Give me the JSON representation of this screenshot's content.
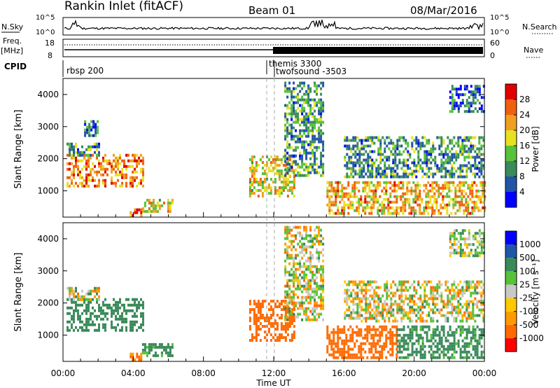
{
  "header": {
    "title": "Rankin Inlet (fitACF)",
    "beam": "Beam 01",
    "date": "08/Mar/2016"
  },
  "aux_panels": {
    "nsky_label": "N.Sky",
    "nsearch_label": "N.Search",
    "freq_label_line1": "Freq.",
    "freq_label_line2": "[MHz]",
    "nave_label": "Nave",
    "cpid_label": "CPID",
    "nsky_ticks": [
      "10^5",
      "10^0"
    ],
    "nsearch_ticks": [
      "10^5",
      "10^0"
    ],
    "freq_ticks": [
      "18",
      "8"
    ],
    "nave_ticks": [
      "60",
      "0"
    ]
  },
  "cpid_segments": [
    {
      "label": "rbsp 200",
      "start_hour": 0
    },
    {
      "label": "themis 3300",
      "start_hour": 11.6
    },
    {
      "label": "twofsound -3503",
      "start_hour": 12.0
    }
  ],
  "x_axis": {
    "label": "Time UT",
    "ticks": [
      "00:00",
      "04:00",
      "08:00",
      "12:00",
      "16:00",
      "20:00",
      "00:00"
    ]
  },
  "power_colorbar": {
    "label": "Power [dB]",
    "ticks": [
      "28",
      "24",
      "20",
      "16",
      "12",
      "8",
      "4"
    ]
  },
  "velocity_colorbar": {
    "label": "Velocity [m s⁻¹]",
    "ticks": [
      "1000",
      "500",
      "100",
      "25",
      "-25",
      "-100",
      "-500",
      "-1000"
    ]
  },
  "colors": {
    "power_scale": [
      "#0000ff",
      "#2255a8",
      "#3a8a5a",
      "#58c23a",
      "#e8e020",
      "#f0a020",
      "#f06010",
      "#e00000"
    ],
    "velocity_scale": [
      "#ff0000",
      "#ff6a00",
      "#ff9a00",
      "#ffc800",
      "#c8c8c8",
      "#58c23a",
      "#3a8a5a",
      "#2255a8",
      "#0000ff"
    ]
  },
  "chart_data": [
    {
      "type": "heatmap",
      "title": "Power",
      "ylabel": "Slant Range [km]",
      "xlabel": "Time UT",
      "xlim": [
        0,
        24
      ],
      "ylim": [
        180,
        4500
      ],
      "yticks": [
        1000,
        2000,
        3000,
        4000
      ],
      "colorbar_label": "Power [dB]",
      "colorbar_range": [
        0,
        30
      ],
      "regions": [
        {
          "t0": 0.2,
          "t1": 4.6,
          "r0": 1150,
          "r1": 2150,
          "value": 22
        },
        {
          "t0": 0.2,
          "t1": 2.0,
          "r0": 2100,
          "r1": 2500,
          "value": 10
        },
        {
          "t0": 1.2,
          "t1": 2.0,
          "r0": 2700,
          "r1": 3200,
          "value": 8
        },
        {
          "t0": 3.8,
          "t1": 4.4,
          "r0": 250,
          "r1": 450,
          "value": 24
        },
        {
          "t0": 4.5,
          "t1": 6.2,
          "r0": 400,
          "r1": 750,
          "value": 18
        },
        {
          "t0": 10.6,
          "t1": 13.2,
          "r0": 800,
          "r1": 2100,
          "value": 18
        },
        {
          "t0": 12.6,
          "t1": 14.8,
          "r0": 1500,
          "r1": 4400,
          "value": 10
        },
        {
          "t0": 15.0,
          "t1": 24.0,
          "r0": 300,
          "r1": 1300,
          "value": 20
        },
        {
          "t0": 16.0,
          "t1": 24.0,
          "r0": 1400,
          "r1": 2700,
          "value": 10
        },
        {
          "t0": 22.0,
          "t1": 24.0,
          "r0": 3500,
          "r1": 4300,
          "value": 6
        }
      ]
    },
    {
      "type": "heatmap",
      "title": "Velocity",
      "ylabel": "Slant Range [km]",
      "xlabel": "Time UT",
      "xlim": [
        0,
        24
      ],
      "ylim": [
        180,
        4500
      ],
      "yticks": [
        1000,
        2000,
        3000,
        4000
      ],
      "colorbar_label": "Velocity [m s⁻¹]",
      "colorbar_range": [
        -1000,
        1000
      ],
      "regions": [
        {
          "t0": 0.2,
          "t1": 4.6,
          "r0": 1150,
          "r1": 2150,
          "value": 300
        },
        {
          "t0": 0.2,
          "t1": 2.0,
          "r0": 2100,
          "r1": 2500,
          "value": 0
        },
        {
          "t0": 3.8,
          "t1": 4.4,
          "r0": 250,
          "r1": 450,
          "value": -150
        },
        {
          "t0": 4.5,
          "t1": 6.2,
          "r0": 400,
          "r1": 750,
          "value": 200
        },
        {
          "t0": 10.6,
          "t1": 13.2,
          "r0": 800,
          "r1": 2100,
          "value": -300
        },
        {
          "t0": 12.6,
          "t1": 14.8,
          "r0": 1500,
          "r1": 4400,
          "value": 0
        },
        {
          "t0": 15.0,
          "t1": 19.0,
          "r0": 300,
          "r1": 1300,
          "value": -250
        },
        {
          "t0": 19.0,
          "t1": 24.0,
          "r0": 300,
          "r1": 1300,
          "value": 200
        },
        {
          "t0": 16.0,
          "t1": 24.0,
          "r0": 1400,
          "r1": 2700,
          "value": 0
        },
        {
          "t0": 22.0,
          "t1": 24.0,
          "r0": 3500,
          "r1": 4300,
          "value": 50
        }
      ]
    }
  ]
}
